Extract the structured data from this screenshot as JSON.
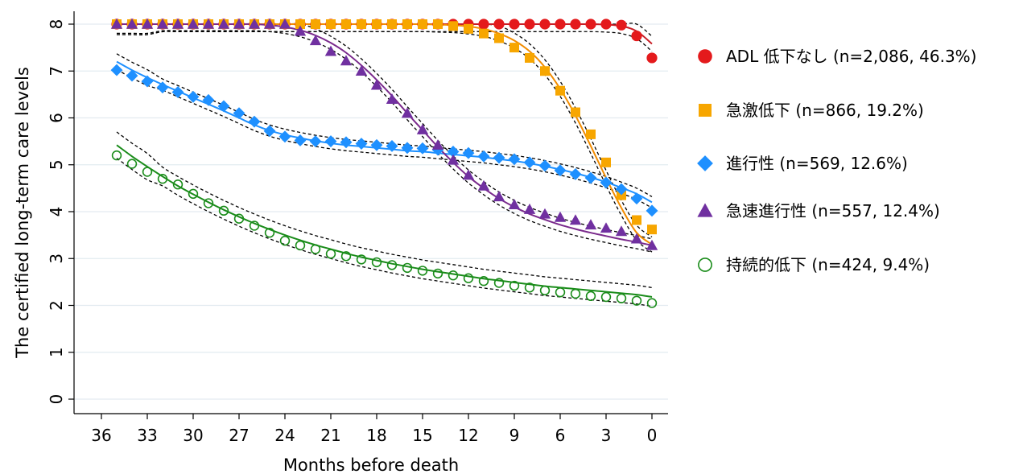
{
  "chart_data": {
    "type": "scatter",
    "xlabel": "Months before death",
    "ylabel": "The certified long-term care levels",
    "xlim": [
      36,
      0
    ],
    "ylim": [
      0,
      8
    ],
    "x_reversed": true,
    "x_ticks": [
      "36",
      "33",
      "30",
      "27",
      "24",
      "21",
      "18",
      "15",
      "12",
      "9",
      "6",
      "3",
      "0"
    ],
    "y_ticks": [
      "0",
      "1",
      "2",
      "3",
      "4",
      "5",
      "6",
      "7",
      "8"
    ],
    "grid": "horizontal",
    "legend_position": "right",
    "x": [
      35,
      34,
      33,
      32,
      31,
      30,
      29,
      28,
      27,
      26,
      25,
      24,
      23,
      22,
      21,
      20,
      19,
      18,
      17,
      16,
      15,
      14,
      13,
      12,
      11,
      10,
      9,
      8,
      7,
      6,
      5,
      4,
      3,
      2,
      1,
      0
    ],
    "series": [
      {
        "name": "ADL 低下なし (n=2,086, 46.3%)",
        "marker": "circle",
        "color": "#e41a1c",
        "fit_color": "#c81d25",
        "values": [
          8,
          8,
          8,
          8,
          8,
          8,
          8,
          8,
          8,
          8,
          8,
          8,
          8,
          8,
          8,
          8,
          8,
          8,
          8,
          8,
          8,
          8,
          8,
          8,
          8,
          8,
          8,
          8,
          8,
          8,
          8,
          8,
          8,
          7.98,
          7.75,
          7.28
        ],
        "fit": [
          8,
          8,
          8,
          8,
          8,
          8,
          8,
          8,
          8,
          8,
          8,
          8,
          8,
          8,
          8,
          8,
          8,
          8,
          8,
          8,
          8,
          8,
          8,
          8,
          8,
          8,
          8,
          8,
          8,
          8,
          8,
          8,
          7.99,
          7.96,
          7.85,
          7.58
        ]
      },
      {
        "name": "急激低下 (n=866, 19.2%)",
        "marker": "square",
        "color": "#f7a600",
        "fit_color": "#f28c00",
        "values": [
          8,
          8,
          8,
          8,
          8,
          8,
          8,
          8,
          8,
          8,
          8,
          8,
          8,
          8,
          8,
          8,
          8,
          8,
          8,
          8,
          8,
          8,
          7.96,
          7.9,
          7.8,
          7.7,
          7.5,
          7.28,
          7.0,
          6.58,
          6.12,
          5.65,
          5.05,
          4.35,
          3.82,
          3.62
        ],
        "fit": [
          8,
          8,
          8,
          8,
          8,
          8,
          8,
          8,
          8,
          8,
          8,
          8,
          8,
          8,
          8,
          8,
          8,
          8,
          8,
          8,
          8,
          7.99,
          7.98,
          7.95,
          7.9,
          7.8,
          7.65,
          7.42,
          7.08,
          6.62,
          6.05,
          5.4,
          4.72,
          4.08,
          3.55,
          3.3
        ]
      },
      {
        "name": "進行性 (n=569, 12.6%)",
        "marker": "diamond",
        "color": "#1e90ff",
        "fit_color": "#1e90ff",
        "values": [
          7.02,
          6.9,
          6.78,
          6.65,
          6.55,
          6.45,
          6.38,
          6.25,
          6.1,
          5.92,
          5.72,
          5.6,
          5.52,
          5.5,
          5.5,
          5.48,
          5.45,
          5.42,
          5.4,
          5.36,
          5.35,
          5.32,
          5.28,
          5.25,
          5.18,
          5.15,
          5.12,
          5.05,
          4.98,
          4.88,
          4.8,
          4.72,
          4.62,
          4.48,
          4.28,
          4.02
        ],
        "fit": [
          7.2,
          7.02,
          6.86,
          6.71,
          6.57,
          6.43,
          6.29,
          6.15,
          6.0,
          5.85,
          5.73,
          5.64,
          5.57,
          5.51,
          5.46,
          5.42,
          5.39,
          5.36,
          5.33,
          5.3,
          5.28,
          5.25,
          5.22,
          5.19,
          5.16,
          5.12,
          5.08,
          5.03,
          4.97,
          4.9,
          4.82,
          4.73,
          4.63,
          4.51,
          4.38,
          4.2
        ]
      },
      {
        "name": "急速進行性 (n=557, 12.4%)",
        "marker": "triangle",
        "color": "#7030a0",
        "fit_color": "#7a2a8c",
        "values": [
          8,
          8,
          8,
          8,
          8,
          8,
          8,
          8,
          8,
          8,
          8,
          8,
          7.85,
          7.65,
          7.42,
          7.22,
          7.0,
          6.7,
          6.4,
          6.1,
          5.75,
          5.42,
          5.1,
          4.78,
          4.55,
          4.32,
          4.15,
          4.05,
          3.95,
          3.88,
          3.82,
          3.72,
          3.65,
          3.58,
          3.42,
          3.28
        ],
        "fit": [
          8,
          8,
          8,
          8,
          8,
          8,
          8,
          8,
          8,
          8,
          7.98,
          7.94,
          7.87,
          7.76,
          7.6,
          7.39,
          7.12,
          6.81,
          6.47,
          6.1,
          5.74,
          5.38,
          5.05,
          4.75,
          4.5,
          4.28,
          4.1,
          3.95,
          3.83,
          3.72,
          3.63,
          3.55,
          3.48,
          3.41,
          3.35,
          3.28
        ]
      },
      {
        "name": "持続的低下 (n=424, 9.4%)",
        "marker": "circle-open",
        "color": "#1a8c1a",
        "fit_color": "#1a8c1a",
        "values": [
          5.2,
          5.02,
          4.85,
          4.7,
          4.58,
          4.38,
          4.18,
          4.02,
          3.85,
          3.7,
          3.55,
          3.38,
          3.28,
          3.2,
          3.1,
          3.05,
          2.98,
          2.92,
          2.86,
          2.8,
          2.74,
          2.68,
          2.64,
          2.58,
          2.52,
          2.48,
          2.42,
          2.38,
          2.32,
          2.28,
          2.25,
          2.2,
          2.18,
          2.15,
          2.1,
          2.05
        ],
        "fit": [
          5.42,
          5.18,
          4.96,
          4.75,
          4.55,
          4.37,
          4.2,
          4.04,
          3.89,
          3.75,
          3.62,
          3.5,
          3.39,
          3.29,
          3.2,
          3.11,
          3.03,
          2.96,
          2.89,
          2.83,
          2.77,
          2.72,
          2.67,
          2.62,
          2.57,
          2.53,
          2.49,
          2.45,
          2.41,
          2.38,
          2.35,
          2.32,
          2.29,
          2.26,
          2.23,
          2.18
        ]
      }
    ]
  }
}
